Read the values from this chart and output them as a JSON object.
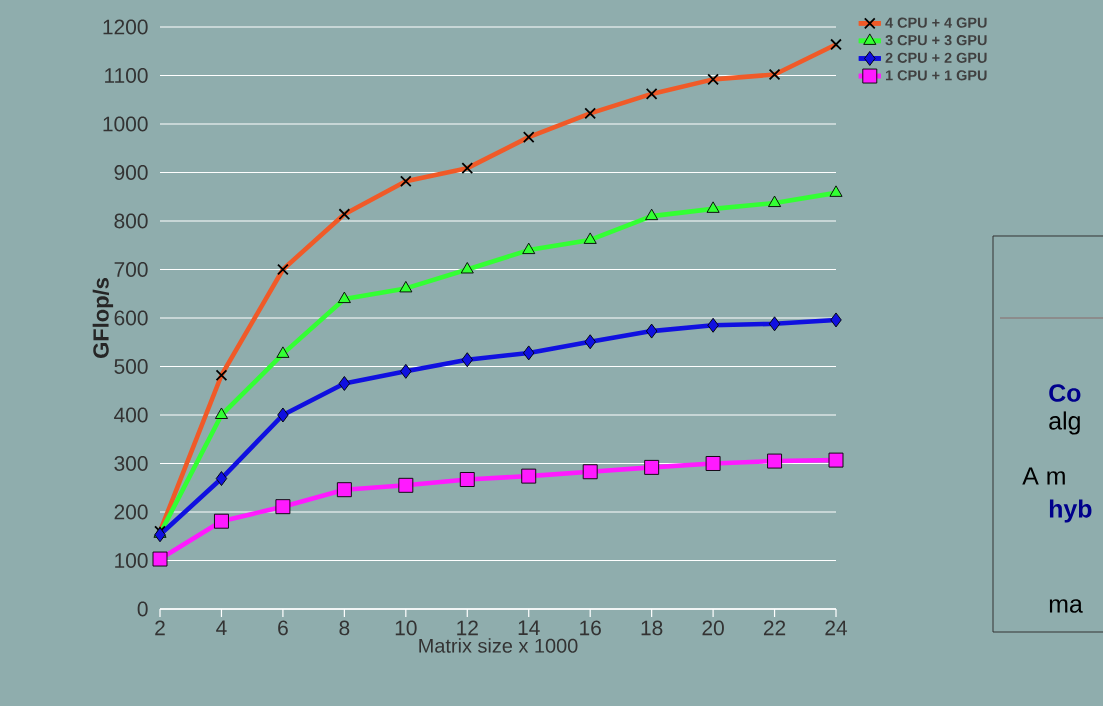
{
  "chart_data": {
    "type": "line",
    "xlabel": "Matrix size x 1000",
    "ylabel": "GFlop/s",
    "x": [
      2,
      4,
      6,
      8,
      10,
      12,
      14,
      16,
      18,
      20,
      22,
      24
    ],
    "xlim": [
      2,
      24
    ],
    "xticks": [
      2,
      4,
      6,
      8,
      10,
      12,
      14,
      16,
      18,
      20,
      22,
      24
    ],
    "ylim": [
      0,
      1200
    ],
    "yticks": [
      0,
      100,
      200,
      300,
      400,
      500,
      600,
      700,
      800,
      900,
      1000,
      1100,
      1200
    ],
    "grid": "y",
    "legend": "top right",
    "line_style": "solid",
    "series": [
      {
        "name": "4 CPU + 4 GPU",
        "color": "#f05a28",
        "marker": "cross",
        "values": [
          160,
          482,
          700,
          814,
          882,
          909,
          973,
          1022,
          1062,
          1092,
          1102,
          1164
        ]
      },
      {
        "name": "3 CPU + 3 GPU",
        "color": "#33ff33",
        "marker": "triangle",
        "values": [
          155,
          400,
          526,
          639,
          661,
          700,
          740,
          761,
          810,
          825,
          837,
          858
        ]
      },
      {
        "name": "2 CPU + 2 GPU",
        "color": "#1010e0",
        "marker": "diamond",
        "values": [
          153,
          269,
          400,
          465,
          490,
          514,
          528,
          551,
          573,
          585,
          588,
          596
        ]
      },
      {
        "name": "1 CPU + 1 GPU",
        "color": "#ff1aff",
        "marker": "square",
        "values": [
          103,
          181,
          211,
          246,
          255,
          267,
          274,
          283,
          292,
          300,
          305,
          307
        ]
      }
    ],
    "annotations": [
      "Co",
      "alg",
      "A m",
      "hyb",
      "ma"
    ]
  }
}
